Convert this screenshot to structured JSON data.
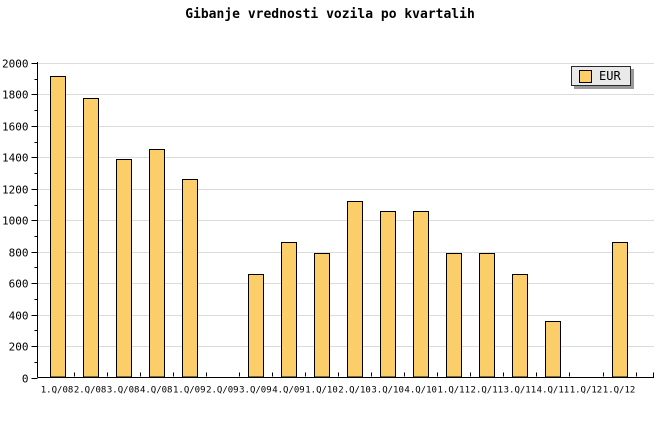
{
  "page": {
    "background": "#ffffff"
  },
  "chart_data": {
    "type": "bar",
    "title": "Gibanje vrednosti vozila po kvartalih",
    "categories": [
      "1.Q/08",
      "2.Q/08",
      "3.Q/08",
      "4.Q/08",
      "1.Q/09",
      "2.Q/09",
      "3.Q/09",
      "4.Q/09",
      "1.Q/10",
      "2.Q/10",
      "3.Q/10",
      "4.Q/10",
      "1.Q/11",
      "2.Q/11",
      "3.Q/11",
      "4.Q/11",
      "1.Q/12",
      "1.Q/12"
    ],
    "series": [
      {
        "name": "EUR",
        "values": [
          1920,
          1780,
          1390,
          1450,
          1260,
          null,
          660,
          860,
          790,
          1120,
          1060,
          1060,
          790,
          790,
          660,
          360,
          null,
          860
        ]
      }
    ],
    "legend": {
      "label": "EUR",
      "position": "top-right"
    },
    "xlabel": "",
    "ylabel": "",
    "ylim": [
      0,
      2000
    ],
    "ytick_major": 200,
    "ytick_minor": 100,
    "grid": "horizontal-major",
    "colors": {
      "bar_fill": "#fcce69",
      "bar_border": "#000000",
      "grid": "#dcdcdc",
      "axis": "#000000",
      "text": "#000000",
      "legend_bg": "#e9e9e9",
      "legend_shadow": "#999999"
    }
  }
}
